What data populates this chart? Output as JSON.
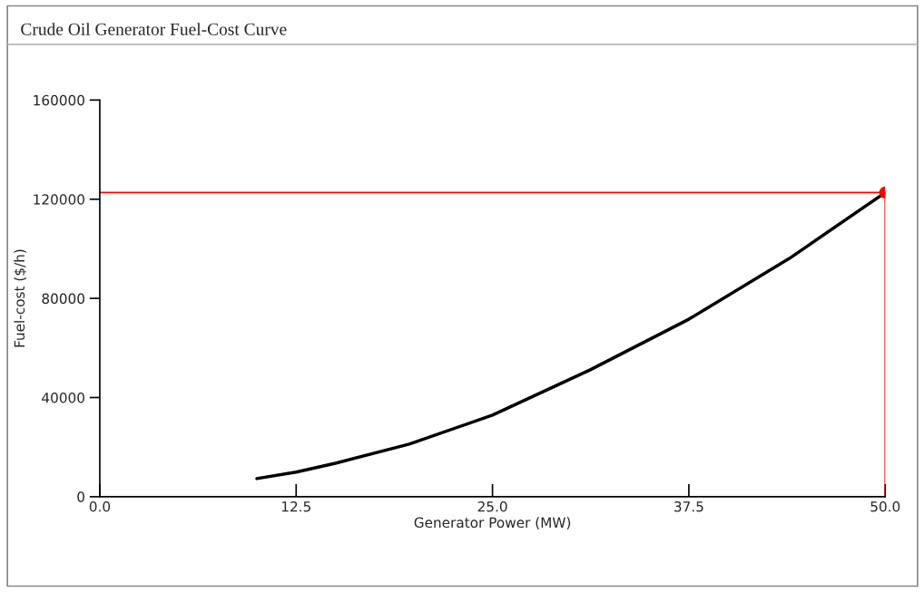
{
  "chart_data": {
    "type": "line",
    "title": "Crude Oil Generator Fuel-Cost Curve",
    "xlabel": "Generator Power (MW)",
    "ylabel": "Fuel-cost ($/h)",
    "series": [
      {
        "color": "#000000",
        "marker": "none",
        "x": [
          10.0,
          12.5,
          15.0,
          19.7,
          25.0,
          31.2,
          37.5,
          43.9,
          50.0
        ],
        "values": [
          7300,
          9900,
          13500,
          21200,
          32900,
          51100,
          71600,
          96100,
          122700
        ]
      },
      {
        "type": "scatter",
        "marker": "circle",
        "color": "#ff0000",
        "x": [
          50.0
        ],
        "values": [
          122700
        ]
      }
    ],
    "ref_lines": [
      {
        "axis": "y",
        "value": 122700,
        "color": "#ff0000"
      },
      {
        "axis": "x",
        "value": 50.0,
        "color": "#ff0000"
      }
    ],
    "xlim": [
      0,
      50
    ],
    "ylim": [
      0,
      160000
    ],
    "xticks": [
      {
        "value": 0,
        "label": "0.0"
      },
      {
        "value": 12.5,
        "label": "12.5"
      },
      {
        "value": 25,
        "label": "25.0"
      },
      {
        "value": 37.5,
        "label": "37.5"
      },
      {
        "value": 50,
        "label": "50.0"
      }
    ],
    "yticks": [
      0,
      40000,
      80000,
      120000,
      160000
    ],
    "grid": false,
    "legend": false,
    "line_style": "solid"
  }
}
